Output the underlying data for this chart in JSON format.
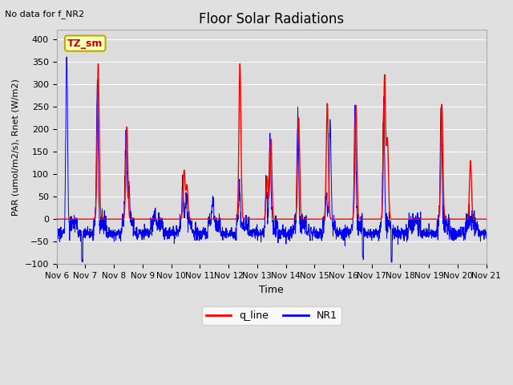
{
  "title": "Floor Solar Radiations",
  "xlabel": "Time",
  "ylabel": "PAR (umol/m2/s), Rnet (W/m2)",
  "ylim": [
    -100,
    420
  ],
  "note": "No data for f_NR2",
  "legend_label_box": "TZ_sm",
  "legend_lines": [
    {
      "label": "q_line",
      "color": "#FF0000"
    },
    {
      "label": "NR1",
      "color": "#0000EE"
    }
  ],
  "x_tick_labels": [
    "Nov 6",
    "Nov 7",
    "Nov 8",
    "Nov 9",
    "Nov 10",
    "Nov 11",
    "Nov 12",
    "Nov 13",
    "Nov 14",
    "Nov 15",
    "Nov 16",
    "Nov 17",
    "Nov 18",
    "Nov 19",
    "Nov 20",
    "Nov 21"
  ],
  "background_color": "#E0E0E0",
  "plot_bg_color": "#DCDCDC",
  "grid_color": "#FFFFFF",
  "num_days": 15,
  "red_spikes": [
    {
      "day": 1.45,
      "peak": 345
    },
    {
      "day": 2.45,
      "peak": 205
    },
    {
      "day": 4.45,
      "peak": 108
    },
    {
      "day": 4.55,
      "peak": 75
    },
    {
      "day": 6.4,
      "peak": 345
    },
    {
      "day": 7.35,
      "peak": 95
    },
    {
      "day": 7.48,
      "peak": 178
    },
    {
      "day": 8.45,
      "peak": 225
    },
    {
      "day": 9.45,
      "peak": 257
    },
    {
      "day": 10.45,
      "peak": 253
    },
    {
      "day": 11.45,
      "peak": 318
    },
    {
      "day": 11.55,
      "peak": 175
    },
    {
      "day": 13.45,
      "peak": 255
    },
    {
      "day": 14.45,
      "peak": 130
    }
  ],
  "blue_spikes": [
    {
      "day": 0.35,
      "peak": 375
    },
    {
      "day": 1.42,
      "peak": 315
    },
    {
      "day": 2.42,
      "peak": 205
    },
    {
      "day": 2.52,
      "peak": 90
    },
    {
      "day": 3.42,
      "peak": 30
    },
    {
      "day": 4.4,
      "peak": 90
    },
    {
      "day": 4.52,
      "peak": 60
    },
    {
      "day": 5.45,
      "peak": 48
    },
    {
      "day": 6.38,
      "peak": 75
    },
    {
      "day": 7.32,
      "peak": 95
    },
    {
      "day": 7.45,
      "peak": 185
    },
    {
      "day": 8.42,
      "peak": 225
    },
    {
      "day": 9.42,
      "peak": 58
    },
    {
      "day": 9.55,
      "peak": 218
    },
    {
      "day": 10.42,
      "peak": 253
    },
    {
      "day": 11.42,
      "peak": 270
    },
    {
      "day": 13.42,
      "peak": 255
    },
    {
      "day": 14.42,
      "peak": 10
    }
  ],
  "night_base": -32,
  "night_noise": 6,
  "deep_dips": [
    {
      "day": 0.9,
      "val": -90
    },
    {
      "day": 10.7,
      "val": -85
    },
    {
      "day": 11.7,
      "val": -88
    }
  ]
}
